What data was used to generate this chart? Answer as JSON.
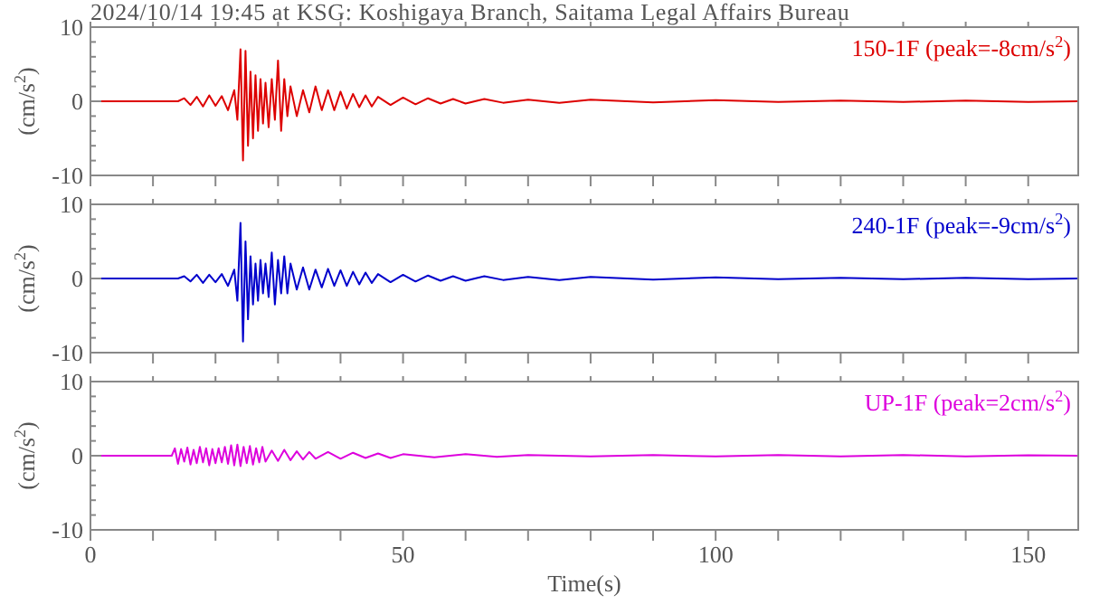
{
  "chart_data": [
    {
      "type": "line",
      "title": "2024/10/14 19:45 at KSG: Koshigaya Branch, Saitama Legal Affairs Bureau",
      "ylabel": "(cm/s$^{2}$)",
      "legend": "top right",
      "tick_labels": "y",
      "xlim": [
        0,
        158
      ],
      "ylim": [
        -10,
        10
      ],
      "xticks": [
        {
          "value": 0,
          "label": null
        },
        {
          "value": 10,
          "label": null
        },
        {
          "value": 20,
          "label": null
        },
        {
          "value": 30,
          "label": null
        },
        {
          "value": 40,
          "label": null
        },
        {
          "value": 50,
          "label": null
        },
        {
          "value": 60,
          "label": null
        },
        {
          "value": 70,
          "label": null
        },
        {
          "value": 80,
          "label": null
        },
        {
          "value": 90,
          "label": null
        },
        {
          "value": 100,
          "label": null
        },
        {
          "value": 110,
          "label": null
        },
        {
          "value": 120,
          "label": null
        },
        {
          "value": 130,
          "label": null
        },
        {
          "value": 140,
          "label": null
        },
        {
          "value": 150,
          "label": null
        }
      ],
      "yticks": [
        -10,
        {
          "value": -8,
          "label": null
        },
        {
          "value": -6,
          "label": null
        },
        {
          "value": -4,
          "label": null
        },
        {
          "value": -2,
          "label": null
        },
        0,
        {
          "value": 2,
          "label": null
        },
        {
          "value": 4,
          "label": null
        },
        {
          "value": 6,
          "label": null
        },
        {
          "value": 8,
          "label": null
        },
        10
      ],
      "series": [
        {
          "name": "150-1F (peak=-8cm/s$^{2}$)",
          "color": "#dd0000",
          "x": [
            0,
            14,
            15,
            16,
            17,
            18,
            19,
            20,
            21,
            22,
            23,
            23.5,
            24,
            24.4,
            24.8,
            25.2,
            25.6,
            26,
            26.4,
            26.8,
            27.2,
            27.6,
            28,
            28.5,
            29,
            29.5,
            30,
            30.5,
            31,
            31.5,
            32,
            33,
            34,
            35,
            36,
            37,
            38,
            39,
            40,
            41,
            42,
            43,
            44,
            45,
            46,
            48,
            50,
            52,
            54,
            56,
            58,
            60,
            63,
            66,
            70,
            75,
            80,
            90,
            100,
            110,
            120,
            130,
            140,
            150,
            158
          ],
          "values": [
            0,
            0,
            0.4,
            -0.5,
            0.6,
            -0.7,
            0.8,
            -0.6,
            0.7,
            -1.2,
            1.5,
            -2.5,
            7,
            -8,
            6.8,
            -6,
            4,
            -5,
            3.5,
            -4,
            3,
            -3,
            2.5,
            -3.5,
            3,
            -2.5,
            5.5,
            -4,
            3,
            -2,
            2,
            -2,
            1.5,
            -1.5,
            2,
            -1.2,
            1.5,
            -1.2,
            1.3,
            -1,
            1,
            -0.8,
            0.8,
            -0.7,
            0.6,
            -0.5,
            0.5,
            -0.4,
            0.4,
            -0.3,
            0.3,
            -0.3,
            0.3,
            -0.2,
            0.2,
            -0.2,
            0.2,
            -0.15,
            0.15,
            -0.1,
            0.1,
            -0.1,
            0.1,
            -0.1,
            0
          ]
        }
      ]
    },
    {
      "type": "line",
      "ylabel": "(cm/s$^{2}$)",
      "legend": "top right",
      "tick_labels": "y",
      "xlim": [
        0,
        158
      ],
      "ylim": [
        -10,
        10
      ],
      "xticks": [
        {
          "value": 0,
          "label": null
        },
        {
          "value": 10,
          "label": null
        },
        {
          "value": 20,
          "label": null
        },
        {
          "value": 30,
          "label": null
        },
        {
          "value": 40,
          "label": null
        },
        {
          "value": 50,
          "label": null
        },
        {
          "value": 60,
          "label": null
        },
        {
          "value": 70,
          "label": null
        },
        {
          "value": 80,
          "label": null
        },
        {
          "value": 90,
          "label": null
        },
        {
          "value": 100,
          "label": null
        },
        {
          "value": 110,
          "label": null
        },
        {
          "value": 120,
          "label": null
        },
        {
          "value": 130,
          "label": null
        },
        {
          "value": 140,
          "label": null
        },
        {
          "value": 150,
          "label": null
        }
      ],
      "yticks": [
        -10,
        {
          "value": -8,
          "label": null
        },
        {
          "value": -6,
          "label": null
        },
        {
          "value": -4,
          "label": null
        },
        {
          "value": -2,
          "label": null
        },
        0,
        {
          "value": 2,
          "label": null
        },
        {
          "value": 4,
          "label": null
        },
        {
          "value": 6,
          "label": null
        },
        {
          "value": 8,
          "label": null
        },
        10
      ],
      "series": [
        {
          "name": "240-1F (peak=-9cm/s$^{2}$)",
          "color": "#0000cc",
          "x": [
            0,
            14,
            15,
            16,
            17,
            18,
            19,
            20,
            21,
            22,
            23,
            23.5,
            24,
            24.4,
            24.8,
            25.2,
            25.6,
            26,
            26.4,
            26.8,
            27.2,
            27.6,
            28,
            28.5,
            29,
            29.5,
            30,
            30.5,
            31,
            31.5,
            32,
            33,
            34,
            35,
            36,
            37,
            38,
            39,
            40,
            41,
            42,
            43,
            44,
            45,
            46,
            48,
            50,
            52,
            54,
            56,
            58,
            60,
            63,
            66,
            70,
            75,
            80,
            90,
            100,
            110,
            120,
            130,
            140,
            150,
            158
          ],
          "values": [
            0,
            0,
            0.3,
            -0.4,
            0.5,
            -0.6,
            0.5,
            -0.5,
            0.6,
            -1,
            1.2,
            -3,
            7.5,
            -8.5,
            5,
            -5.5,
            3,
            -3.5,
            2,
            -3,
            2.5,
            -2,
            2,
            -2.5,
            3.5,
            -3.5,
            2.5,
            -2,
            3,
            -2,
            2,
            -1.5,
            1.5,
            -1.5,
            1.2,
            -1.2,
            1.3,
            -1,
            1.1,
            -1,
            0.9,
            -0.8,
            0.8,
            -0.6,
            0.6,
            -0.5,
            0.5,
            -0.4,
            0.4,
            -0.3,
            0.3,
            -0.3,
            0.3,
            -0.2,
            0.2,
            -0.2,
            0.2,
            -0.15,
            0.15,
            -0.1,
            0.1,
            -0.1,
            0.1,
            -0.1,
            0
          ]
        }
      ]
    },
    {
      "type": "line",
      "ylabel": "(cm/s$^{2}$)",
      "xlabel": "Time(s)",
      "legend": "top right",
      "xlim": [
        0,
        158
      ],
      "ylim": [
        -10,
        10
      ],
      "xticks": [
        0,
        {
          "value": 10,
          "label": null
        },
        {
          "value": 20,
          "label": null
        },
        {
          "value": 30,
          "label": null
        },
        {
          "value": 40,
          "label": null
        },
        50,
        {
          "value": 60,
          "label": null
        },
        {
          "value": 70,
          "label": null
        },
        {
          "value": 80,
          "label": null
        },
        {
          "value": 90,
          "label": null
        },
        100,
        {
          "value": 110,
          "label": null
        },
        {
          "value": 120,
          "label": null
        },
        {
          "value": 130,
          "label": null
        },
        {
          "value": 140,
          "label": null
        },
        150
      ],
      "yticks": [
        -10,
        {
          "value": -8,
          "label": null
        },
        {
          "value": -6,
          "label": null
        },
        {
          "value": -4,
          "label": null
        },
        {
          "value": -2,
          "label": null
        },
        0,
        {
          "value": 2,
          "label": null
        },
        {
          "value": 4,
          "label": null
        },
        {
          "value": 6,
          "label": null
        },
        {
          "value": 8,
          "label": null
        },
        10
      ],
      "series": [
        {
          "name": "UP-1F (peak=2cm/s$^{2}$)",
          "color": "#dd00dd",
          "x": [
            0,
            13,
            13.5,
            14,
            14.5,
            15,
            15.5,
            16,
            16.5,
            17,
            17.5,
            18,
            18.5,
            19,
            19.5,
            20,
            20.5,
            21,
            21.5,
            22,
            22.5,
            23,
            23.5,
            24,
            24.5,
            25,
            25.5,
            26,
            26.5,
            27,
            27.5,
            28,
            29,
            30,
            31,
            32,
            33,
            34,
            35,
            36,
            38,
            40,
            42,
            44,
            46,
            48,
            50,
            55,
            60,
            65,
            70,
            80,
            90,
            100,
            110,
            120,
            130,
            140,
            150,
            158
          ],
          "values": [
            0,
            0,
            1,
            -1.1,
            0.9,
            -0.8,
            1.1,
            -1.2,
            0.8,
            -1,
            1.2,
            -0.9,
            1,
            -1.3,
            0.9,
            -1,
            1,
            -0.9,
            1.2,
            -1.1,
            1.4,
            -1.3,
            1.5,
            -1.4,
            1.2,
            -1,
            1.3,
            -1.2,
            1,
            -0.9,
            1.2,
            -0.8,
            0.7,
            -0.7,
            0.8,
            -0.6,
            0.6,
            -0.5,
            0.5,
            -0.4,
            0.5,
            -0.4,
            0.4,
            -0.3,
            0.3,
            -0.3,
            0.2,
            -0.2,
            0.2,
            -0.15,
            0.1,
            -0.1,
            0.1,
            -0.1,
            0.1,
            -0.1,
            0.1,
            -0.1,
            0.05,
            0
          ]
        }
      ]
    }
  ]
}
